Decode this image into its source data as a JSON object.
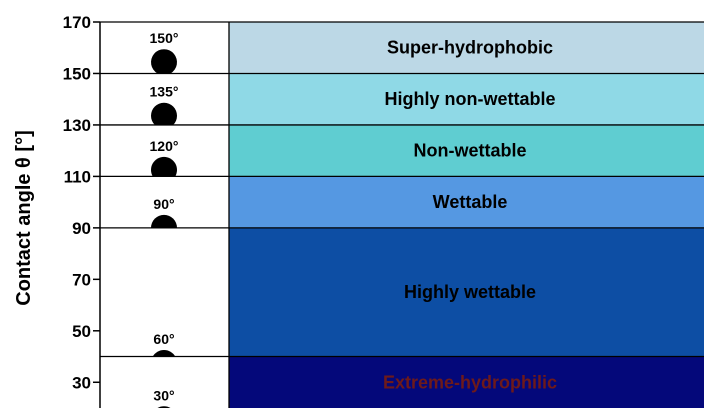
{
  "chart_data": {
    "type": "bar",
    "ylabel": "Contact angle θ [°]",
    "ylim": [
      20,
      170
    ],
    "yticks": [
      30,
      50,
      70,
      90,
      110,
      130,
      150,
      170
    ],
    "bands": [
      {
        "label": "Super-hydrophobic",
        "from": 150,
        "to": 170,
        "color": "#bcd8e6",
        "text_color": "#000000"
      },
      {
        "label": "Highly non-wettable",
        "from": 130,
        "to": 150,
        "color": "#8fd9e6",
        "text_color": "#000000"
      },
      {
        "label": "Non-wettable",
        "from": 110,
        "to": 130,
        "color": "#5fcdd1",
        "text_color": "#000000"
      },
      {
        "label": "Wettable",
        "from": 90,
        "to": 110,
        "color": "#5598e2",
        "text_color": "#000000"
      },
      {
        "label": "Highly wettable",
        "from": 40,
        "to": 90,
        "color": "#0d4ea4",
        "text_color": "#000000"
      },
      {
        "label": "Extreme-hydrophilic",
        "from": 20,
        "to": 40,
        "color": "#04087a",
        "text_color": "#6e1a1a"
      }
    ],
    "droplets": [
      {
        "label": "150°",
        "angle": 150,
        "base": 150
      },
      {
        "label": "135°",
        "angle": 135,
        "base": 130
      },
      {
        "label": "120°",
        "angle": 120,
        "base": 110
      },
      {
        "label": "90°",
        "angle": 90,
        "base": 90
      },
      {
        "label": "60°",
        "angle": 60,
        "base": 40
      },
      {
        "label": "30°",
        "angle": 30,
        "base": 20
      }
    ]
  }
}
